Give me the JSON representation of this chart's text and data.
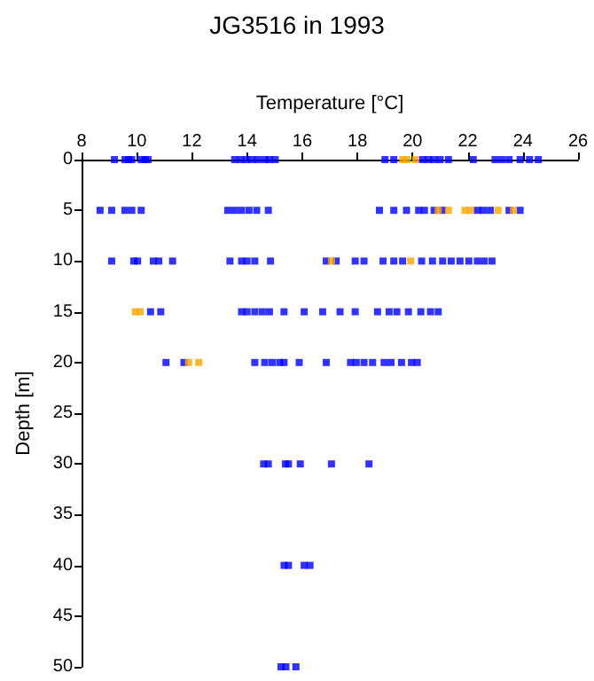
{
  "chart_data": {
    "type": "scatter",
    "title": "JG3516 in 1993",
    "xlabel": "Temperature [°C]",
    "ylabel": "Depth [m]",
    "xlim": [
      8,
      26
    ],
    "xticks": [
      8,
      10,
      12,
      14,
      16,
      18,
      20,
      22,
      24,
      26
    ],
    "ylim": [
      50,
      0
    ],
    "yticks": [
      0,
      5,
      10,
      15,
      20,
      25,
      30,
      35,
      40,
      45,
      50
    ],
    "grid": false,
    "marker": "square",
    "series": [
      {
        "color": "#0000ff",
        "x": [
          9.19,
          9.57,
          9.7,
          9.82,
          10.16,
          10.3,
          10.41,
          13.55,
          13.77,
          13.97,
          14.18,
          14.39,
          14.64,
          14.81,
          15.02,
          19.0,
          19.32,
          20.36,
          20.57,
          20.78,
          21.0,
          21.3,
          22.2,
          22.99,
          23.24,
          23.5,
          23.9,
          24.24,
          24.56,
          8.67,
          9.09,
          9.57,
          9.82,
          10.16,
          13.3,
          13.55,
          13.8,
          14.07,
          14.35,
          14.77,
          18.8,
          19.32,
          19.78,
          20.22,
          20.43,
          20.78,
          21.09,
          22.35,
          22.56,
          22.82,
          23.5,
          23.9,
          9.09,
          9.89,
          10.03,
          10.6,
          10.8,
          11.3,
          13.38,
          13.8,
          14.0,
          14.28,
          14.85,
          16.87,
          17.23,
          17.92,
          18.24,
          18.93,
          19.32,
          19.64,
          20.33,
          20.72,
          21.09,
          21.4,
          21.72,
          22.04,
          22.35,
          22.6,
          22.88,
          10.5,
          10.87,
          13.8,
          14.0,
          14.28,
          14.55,
          14.81,
          15.34,
          16.07,
          16.74,
          17.37,
          17.92,
          18.73,
          19.15,
          19.43,
          19.85,
          20.3,
          20.65,
          20.93,
          11.06,
          11.71,
          14.28,
          14.64,
          14.91,
          15.18,
          15.34,
          15.89,
          16.87,
          17.75,
          17.96,
          18.24,
          18.55,
          18.97,
          19.22,
          19.6,
          19.96,
          20.17,
          14.6,
          14.77,
          15.39,
          15.5,
          15.93,
          17.06,
          18.42,
          15.34,
          15.5,
          16.07,
          16.28,
          15.23,
          15.41,
          15.77
        ],
        "values": [
          0,
          0,
          0,
          0,
          0,
          0,
          0,
          0,
          0,
          0,
          0,
          0,
          0,
          0,
          0,
          0,
          0,
          0,
          0,
          0,
          0,
          0,
          0,
          0,
          0,
          0,
          0,
          0,
          0,
          5,
          5,
          5,
          5,
          5,
          5,
          5,
          5,
          5,
          5,
          5,
          5,
          5,
          5,
          5,
          5,
          5,
          5,
          5,
          5,
          5,
          5,
          5,
          10,
          10,
          10,
          10,
          10,
          10,
          10,
          10,
          10,
          10,
          10,
          10,
          10,
          10,
          10,
          10,
          10,
          10,
          10,
          10,
          10,
          10,
          10,
          10,
          10,
          10,
          10,
          15,
          15,
          15,
          15,
          15,
          15,
          15,
          15,
          15,
          15,
          15,
          15,
          15,
          15,
          15,
          15,
          15,
          15,
          15,
          20,
          20,
          20,
          20,
          20,
          20,
          20,
          20,
          20,
          20,
          20,
          20,
          20,
          20,
          20,
          20,
          20,
          20,
          30,
          30,
          30,
          30,
          30,
          30,
          30,
          40,
          40,
          40,
          40,
          50,
          50,
          50
        ]
      },
      {
        "color": "#ffa500",
        "x": [
          19.64,
          19.8,
          20.11,
          20.93,
          21.3,
          21.9,
          22.1,
          23.1,
          23.66,
          17.06,
          19.93,
          9.95,
          10.12,
          11.88,
          12.25
        ],
        "values": [
          0,
          0,
          0,
          5,
          5,
          5,
          5,
          5,
          5,
          10,
          10,
          15,
          15,
          20,
          20
        ]
      }
    ]
  }
}
